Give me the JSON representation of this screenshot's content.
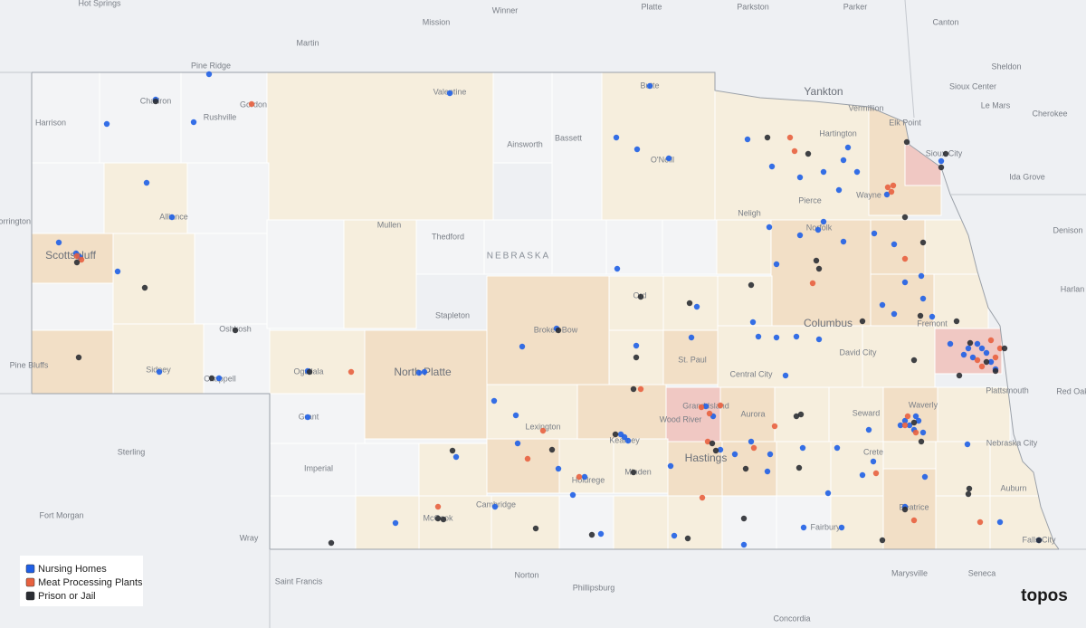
{
  "map": {
    "state_label": "NEBRASKA",
    "places": [
      "Hot Springs",
      "Winner",
      "Platte",
      "Parkston",
      "Parker",
      "Canton",
      "Martin",
      "Mission",
      "Sheldon",
      "Sioux Center",
      "Pine Ridge",
      "Yankton",
      "Vermillion",
      "Elk Point",
      "Le Mars",
      "Cherokee",
      "Harrison",
      "Chadron",
      "Rushville",
      "Gordon",
      "Valentine",
      "Butte",
      "Hartington",
      "Ainsworth",
      "Bassett",
      "O'Neill",
      "Sioux City",
      "Ida Grove",
      "Torrington",
      "Alliance",
      "Mullen",
      "Thedford",
      "Neligh",
      "Pierce",
      "Wayne",
      "Norfolk",
      "Denison",
      "Scottsbluff",
      "Oshkosh",
      "Stapleton",
      "Broken Bow",
      "Ord",
      "Columbus",
      "Fremont",
      "Harlan",
      "Pine Bluffs",
      "Sidney",
      "Chappell",
      "Ogallala",
      "North Platte",
      "St. Paul",
      "Central City",
      "David City",
      "Plattsmouth",
      "Red Oak",
      "Grant",
      "Lexington",
      "Kearney",
      "Grand Island",
      "Wood River",
      "Aurora",
      "Seward",
      "Waverly",
      "Sterling",
      "Hastings",
      "Imperial",
      "Holdrege",
      "Minden",
      "Crete",
      "Nebraska City",
      "Auburn",
      "Fort Morgan",
      "McCook",
      "Cambridge",
      "Fairbury",
      "Beatrice",
      "Falls City",
      "Wray",
      "Saint Francis",
      "Norton",
      "Phillipsburg",
      "Marysville",
      "Seneca",
      "Concordia"
    ],
    "legend": [
      {
        "label": "Nursing Homes",
        "color": "#1f5fe6"
      },
      {
        "label": "Meat Processing Plants",
        "color": "#e8613f"
      },
      {
        "label": "Prison or Jail",
        "color": "#2b2d33"
      }
    ],
    "brand": "topos"
  }
}
